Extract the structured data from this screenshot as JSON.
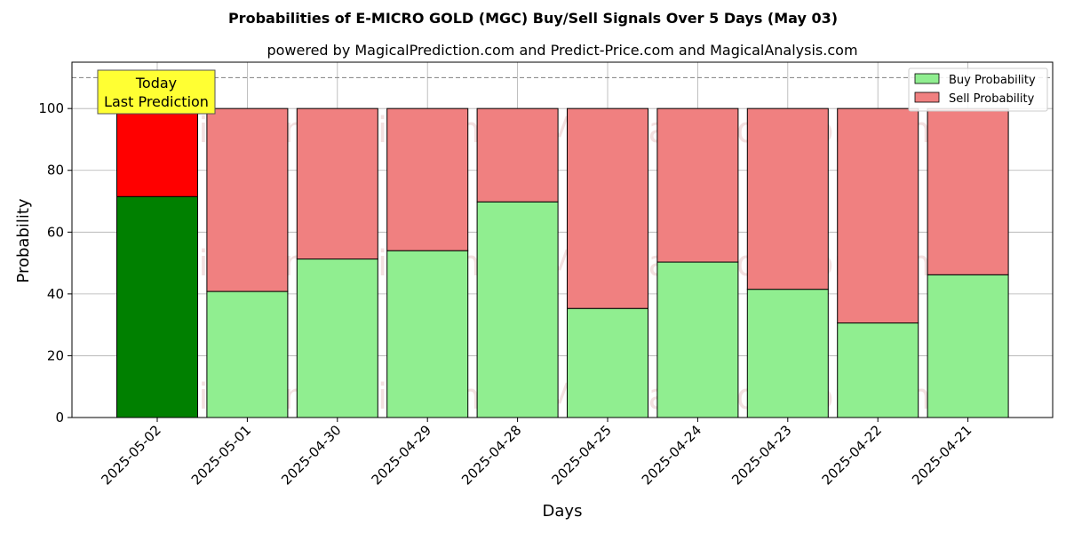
{
  "chart_data": {
    "type": "bar",
    "stacked": true,
    "title": "Probabilities of E-MICRO GOLD (MGC) Buy/Sell Signals Over 5 Days (May 03)",
    "subtitle": "powered by MagicalPrediction.com and Predict-Price.com and MagicalAnalysis.com",
    "xlabel": "Days",
    "ylabel": "Probability",
    "ylim": [
      0,
      115
    ],
    "yticks": [
      0,
      20,
      40,
      60,
      80,
      100
    ],
    "reference_line": 110,
    "grid": true,
    "legend_position": "top-right",
    "categories": [
      "2025-05-02",
      "2025-05-01",
      "2025-04-30",
      "2025-04-29",
      "2025-04-28",
      "2025-04-25",
      "2025-04-24",
      "2025-04-23",
      "2025-04-22",
      "2025-04-21"
    ],
    "series": [
      {
        "name": "Buy Probability",
        "values": [
          71.5,
          40.8,
          51.3,
          54.0,
          69.8,
          35.3,
          50.3,
          41.5,
          30.6,
          46.2
        ]
      },
      {
        "name": "Sell Probability",
        "values": [
          28.5,
          59.2,
          48.7,
          46.0,
          30.2,
          64.7,
          49.7,
          58.5,
          69.4,
          53.8
        ]
      }
    ],
    "colors": {
      "buy": "#90ee90",
      "sell": "#f08080",
      "buy_highlight": "#008000",
      "sell_highlight": "#ff0000",
      "annotation_fill": "#ffff33"
    },
    "annotation": {
      "lines": [
        "Today",
        "Last Prediction"
      ],
      "category_index": 0
    },
    "watermarks": [
      "MagicalAnalysis.com",
      "MagicalPrediction.com"
    ]
  }
}
